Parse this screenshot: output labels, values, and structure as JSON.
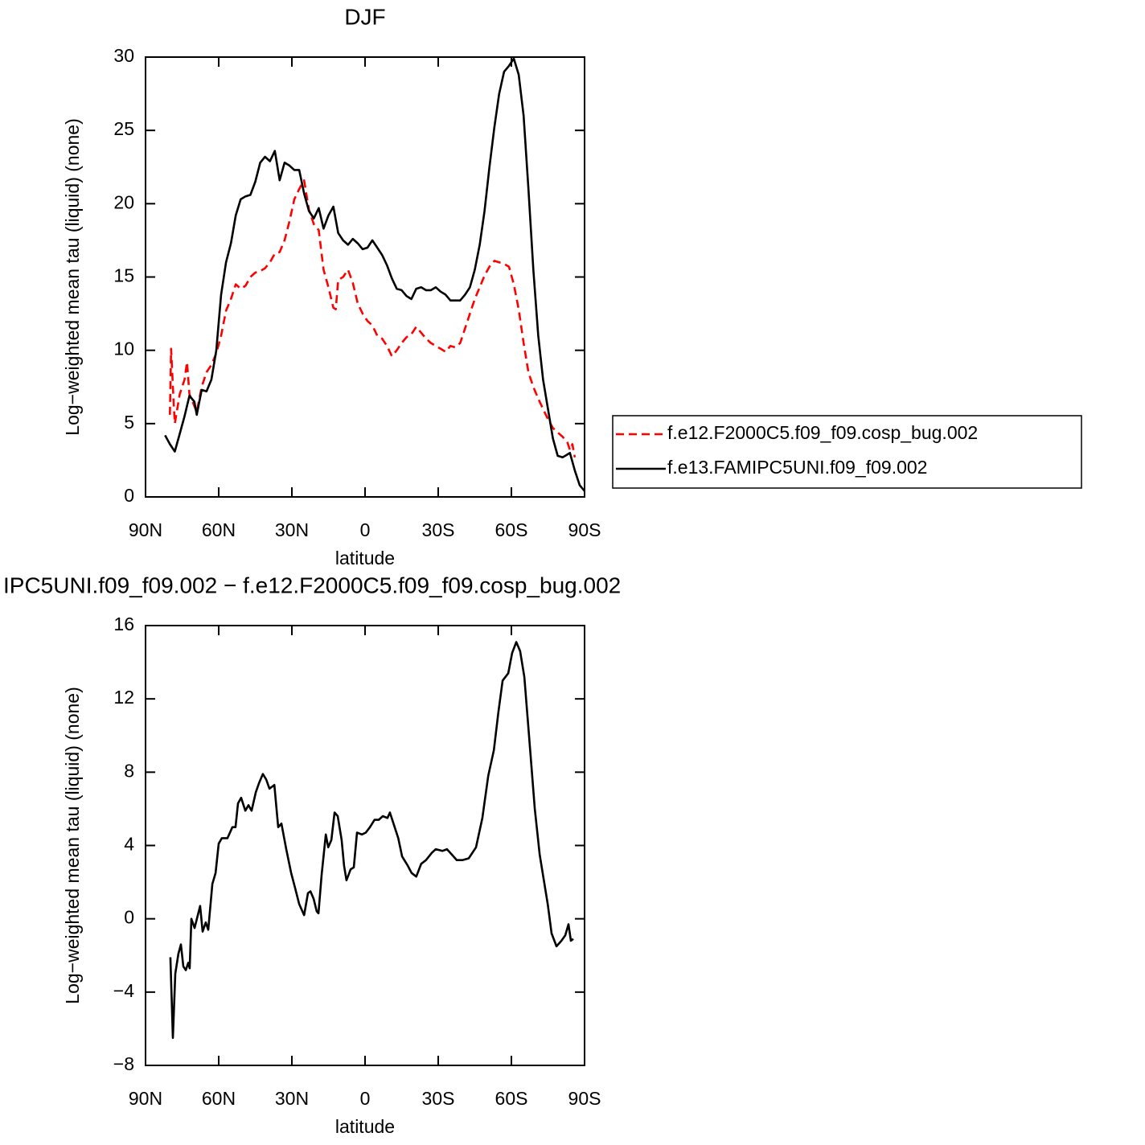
{
  "chart_data": [
    {
      "type": "line",
      "title": "DJF",
      "xlabel": "latitude",
      "ylabel": "Log−weighted mean tau (liquid) (none)",
      "xlim": [
        90,
        -90
      ],
      "xticks": [
        {
          "value": 90,
          "label": "90N"
        },
        {
          "value": 60,
          "label": "60N"
        },
        {
          "value": 30,
          "label": "30N"
        },
        0,
        {
          "value": -30,
          "label": "30S"
        },
        {
          "value": -60,
          "label": "60S"
        },
        {
          "value": -90,
          "label": "90S"
        }
      ],
      "ylim": [
        0,
        30
      ],
      "yticks": [
        0,
        5,
        10,
        15,
        20,
        25,
        30
      ],
      "legend": "right",
      "series": [
        {
          "name": "f.e12.F2000C5.f09_f09.cosp_bug.002",
          "color": "#ff0000",
          "dash": true,
          "x": [
            80,
            79.5,
            78.5,
            78,
            76,
            74,
            73,
            72,
            70,
            69,
            67,
            65,
            63,
            61,
            59,
            57,
            55,
            53,
            51,
            49,
            47,
            45,
            43,
            41,
            39,
            37,
            35,
            33,
            31,
            29,
            27,
            25,
            23,
            21,
            19,
            17,
            15,
            13,
            12,
            11,
            9,
            7,
            5,
            3,
            1,
            -1,
            -3,
            -5,
            -7,
            -9,
            -11,
            -13,
            -15,
            -17,
            -19,
            -21,
            -23,
            -25,
            -27,
            -29,
            -31,
            -33,
            -35,
            -37,
            -39,
            -41,
            -43,
            -45,
            -47,
            -49,
            -51,
            -53,
            -55,
            -57,
            -59,
            -61,
            -63,
            -65,
            -67,
            -69,
            -71,
            -73,
            -75,
            -77,
            -79,
            -81,
            -83,
            -84,
            -85,
            -86
          ],
          "values": [
            5.6,
            10.1,
            6.5,
            5,
            7,
            8,
            9.2,
            7,
            6.2,
            5.8,
            7.5,
            8.5,
            9,
            9.8,
            11,
            12.7,
            13.5,
            14.5,
            14.2,
            14.4,
            15,
            15.3,
            15.4,
            15.6,
            16,
            16.6,
            16.7,
            17.5,
            18.8,
            20.3,
            21,
            21.6,
            19.6,
            18.6,
            18.2,
            15.5,
            14.3,
            12.9,
            12.8,
            14.8,
            15,
            15.5,
            14.6,
            13.2,
            12.5,
            12,
            11.7,
            11,
            10.8,
            10.3,
            9.6,
            10,
            10.5,
            10.9,
            11.1,
            11.6,
            11.2,
            10.8,
            10.5,
            10.3,
            10.1,
            9.9,
            10.3,
            10.2,
            10.5,
            11.5,
            12.5,
            13.5,
            14.3,
            15.1,
            15.7,
            16.1,
            16,
            15.9,
            15.7,
            14.5,
            12.8,
            10.5,
            8.5,
            7.5,
            6.7,
            6,
            5.3,
            4.7,
            4.4,
            4.1,
            3.7,
            3.2,
            3.6,
            2.7
          ]
        },
        {
          "name": "f.e13.FAMIPC5UNI.f09_f09.002",
          "color": "#000000",
          "x": [
            82,
            80,
            78,
            76,
            74,
            72,
            70,
            69,
            67,
            65,
            63,
            61,
            59,
            57,
            55,
            53,
            51,
            49,
            47,
            45,
            43,
            41,
            39,
            37,
            35,
            33,
            31,
            29,
            27,
            25,
            23,
            21,
            19,
            17,
            15,
            13,
            11,
            9,
            7,
            5,
            3,
            1,
            -1,
            -3,
            -5,
            -7,
            -9,
            -11,
            -13,
            -15,
            -17,
            -19,
            -21,
            -23,
            -25,
            -27,
            -29,
            -31,
            -33,
            -35,
            -37,
            -39,
            -41,
            -43,
            -45,
            -47,
            -49,
            -51,
            -53,
            -55,
            -57,
            -59,
            -61,
            -63,
            -65,
            -67,
            -69,
            -71,
            -73,
            -75,
            -77,
            -79,
            -81,
            -83,
            -84,
            -86,
            -88,
            -90
          ],
          "values": [
            4.2,
            3.6,
            3.1,
            4.3,
            5.5,
            6.9,
            6.5,
            5.6,
            7.3,
            7.2,
            8,
            10,
            13.8,
            16,
            17.3,
            19.2,
            20.3,
            20.5,
            20.6,
            21.5,
            22.8,
            23.2,
            22.9,
            23.6,
            21.6,
            22.8,
            22.6,
            22.3,
            22.3,
            20.7,
            19.5,
            19,
            19.7,
            18.3,
            19.2,
            19.8,
            18,
            17.5,
            17.2,
            17.6,
            17.3,
            16.9,
            17,
            17.5,
            17,
            16.5,
            15.8,
            14.9,
            14.2,
            14.1,
            13.7,
            13.5,
            14.2,
            14.3,
            14.1,
            14.1,
            14.3,
            14,
            13.8,
            13.4,
            13.4,
            13.4,
            13.8,
            14.3,
            15.5,
            17.2,
            19.5,
            22.5,
            25.2,
            27.5,
            29,
            29.4,
            29.9,
            28.8,
            26,
            21,
            15.5,
            11,
            8,
            6,
            4,
            2.8,
            2.7,
            2.9,
            3,
            1.8,
            0.8,
            0.4
          ]
        }
      ]
    },
    {
      "type": "line",
      "title": "IPC5UNI.f09_f09.002 − f.e12.F2000C5.f09_f09.cosp_bug.002",
      "xlabel": "latitude",
      "ylabel": "Log−weighted mean tau (liquid) (none)",
      "xlim": [
        90,
        -90
      ],
      "xticks": [
        {
          "value": 90,
          "label": "90N"
        },
        {
          "value": 60,
          "label": "60N"
        },
        {
          "value": 30,
          "label": "30N"
        },
        0,
        {
          "value": -30,
          "label": "30S"
        },
        {
          "value": -60,
          "label": "60S"
        },
        {
          "value": -90,
          "label": "90S"
        }
      ],
      "ylim": [
        -8,
        16
      ],
      "yticks": [
        {
          "value": -8,
          "label": "−8"
        },
        {
          "value": -4,
          "label": "−4"
        },
        0,
        4,
        8,
        12,
        16
      ],
      "series": [
        {
          "color": "#000000",
          "x": [
            79.8,
            78.8,
            77.8,
            76.5,
            75.5,
            74.5,
            73.5,
            72.5,
            71.9,
            71.2,
            69.9,
            67.6,
            66.6,
            65.3,
            64.3,
            62.6,
            61.3,
            60,
            58.7,
            56.4,
            54.4,
            53.1,
            52.1,
            50.8,
            49.1,
            47.8,
            46.5,
            44.8,
            43.5,
            41.9,
            40.5,
            39.2,
            37.2,
            35.6,
            34.3,
            32.3,
            30.3,
            28.7,
            27,
            25,
            23.4,
            22.4,
            21.1,
            19.8,
            19.1,
            17.8,
            16.1,
            15.1,
            13.8,
            12.5,
            11.2,
            9.6,
            8.6,
            7.6,
            5.9,
            4.6,
            3.3,
            1.3,
            -0.3,
            -2,
            -3.9,
            -5.6,
            -7.3,
            -9.2,
            -10.2,
            -13.6,
            -15.2,
            -17.5,
            -19.1,
            -21,
            -23,
            -25,
            -27.4,
            -29,
            -31.7,
            -33.6,
            -35.6,
            -37.6,
            -39.9,
            -42.5,
            -45.5,
            -48.1,
            -50.5,
            -52.8,
            -54.7,
            -56.4,
            -58.7,
            -60.3,
            -62,
            -63.6,
            -65.3,
            -67.3,
            -69.6,
            -71.6,
            -73.2,
            -74.9,
            -76.5,
            -78.5,
            -80.5,
            -82.1,
            -83.4,
            -84.4,
            -85.4
          ],
          "values": [
            -2.1,
            -6.5,
            -3,
            -1.9,
            -1.4,
            -2.6,
            -2.8,
            -2.4,
            -2.7,
            0,
            -0.5,
            0.7,
            -0.7,
            -0.2,
            -0.6,
            1.9,
            2.5,
            4.1,
            4.4,
            4.4,
            5,
            5,
            6.3,
            6.6,
            5.9,
            6.2,
            5.9,
            6.9,
            7.4,
            7.9,
            7.6,
            7.1,
            7.3,
            5,
            5.2,
            3.8,
            2.5,
            1.7,
            0.8,
            0.2,
            1.4,
            1.5,
            1.1,
            0.4,
            0.3,
            2.4,
            4.6,
            3.9,
            4.3,
            5.8,
            5.6,
            4.3,
            2.9,
            2.1,
            2.7,
            2.8,
            4.7,
            4.6,
            4.7,
            5,
            5.4,
            5.4,
            5.6,
            5.5,
            5.8,
            4.4,
            3.4,
            2.9,
            2.5,
            2.3,
            3,
            3.2,
            3.6,
            3.8,
            3.7,
            3.8,
            3.5,
            3.2,
            3.2,
            3.3,
            3.9,
            5.5,
            7.8,
            9.2,
            11.3,
            13,
            13.4,
            14.5,
            15.1,
            14.6,
            13.2,
            9.9,
            6,
            3.5,
            2.2,
            0.8,
            -0.8,
            -1.5,
            -1.2,
            -0.9,
            -0.3,
            -1.2,
            -1.1
          ]
        }
      ]
    }
  ]
}
